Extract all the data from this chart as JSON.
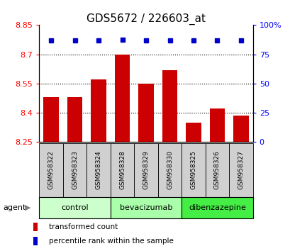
{
  "title": "GDS5672 / 226603_at",
  "categories": [
    "GSM958322",
    "GSM958323",
    "GSM958324",
    "GSM958328",
    "GSM958329",
    "GSM958330",
    "GSM958325",
    "GSM958326",
    "GSM958327"
  ],
  "bar_values": [
    8.48,
    8.48,
    8.57,
    8.7,
    8.55,
    8.62,
    8.35,
    8.42,
    8.385
  ],
  "blue_values": [
    8.77,
    8.77,
    8.77,
    8.775,
    8.77,
    8.77,
    8.77,
    8.77,
    8.77
  ],
  "ylim": [
    8.25,
    8.85
  ],
  "yticks_left": [
    8.25,
    8.4,
    8.55,
    8.7,
    8.85
  ],
  "yticks_right_pct": [
    0,
    25,
    50,
    75,
    100
  ],
  "yticks_right_labels": [
    "0",
    "25",
    "50",
    "75",
    "100%"
  ],
  "bar_color": "#cc0000",
  "blue_color": "#0000cc",
  "bar_bottom": 8.25,
  "groups": [
    {
      "label": "control",
      "start": 0,
      "end": 3,
      "color": "#ccffcc"
    },
    {
      "label": "bevacizumab",
      "start": 3,
      "end": 6,
      "color": "#aaffaa"
    },
    {
      "label": "dibenzazepine",
      "start": 6,
      "end": 9,
      "color": "#44ee44"
    }
  ],
  "agent_label": "agent",
  "legend_items": [
    {
      "label": "transformed count",
      "color": "#cc0000"
    },
    {
      "label": "percentile rank within the sample",
      "color": "#0000cc"
    }
  ],
  "title_fontsize": 11,
  "tick_fontsize": 8,
  "label_fontsize": 8,
  "background_color": "#ffffff",
  "plot_bg_color": "#ffffff",
  "sample_box_color": "#d0d0d0"
}
